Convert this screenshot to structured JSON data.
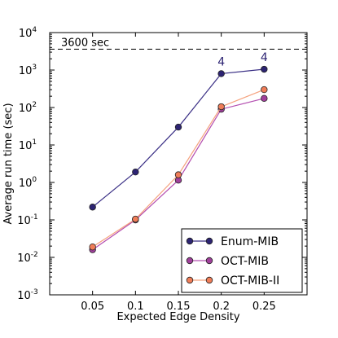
{
  "chart_data": {
    "type": "line",
    "xlabel": "Expected Edge Density",
    "ylabel": "Average run time (sec)",
    "x": [
      0.05,
      0.1,
      0.15,
      0.2,
      0.25
    ],
    "x_ticks": [
      "0.05",
      "0.1",
      "0.15",
      "0.2",
      "0.25"
    ],
    "xlim": [
      0,
      0.3
    ],
    "y_scale": "log",
    "ylim": [
      0.001,
      10000
    ],
    "y_ticks": [
      {
        "base": "10",
        "exp": "-3",
        "value": 0.001
      },
      {
        "base": "10",
        "exp": "-2",
        "value": 0.01
      },
      {
        "base": "10",
        "exp": "-1",
        "value": 0.1
      },
      {
        "base": "10",
        "exp": "0",
        "value": 1
      },
      {
        "base": "10",
        "exp": "1",
        "value": 10
      },
      {
        "base": "10",
        "exp": "2",
        "value": 100
      },
      {
        "base": "10",
        "exp": "3",
        "value": 1000
      },
      {
        "base": "10",
        "exp": "4",
        "value": 10000
      }
    ],
    "grid": false,
    "legend_position": "bottom-right",
    "reference_line": {
      "value": 3600,
      "label": "3600 sec",
      "style": "dashed"
    },
    "series": [
      {
        "name": "Enum-MIB",
        "color": "#2d2473",
        "marker_fill": "#2d2473",
        "line_color": "#3a2f85",
        "values": [
          0.22,
          1.9,
          30,
          800,
          1050
        ]
      },
      {
        "name": "OCT-MIB",
        "color": "#a0409b",
        "marker_fill": "#a0409b",
        "line_color": "#b44fb0",
        "values": [
          0.016,
          0.1,
          1.15,
          90,
          175
        ]
      },
      {
        "name": "OCT-MIB-II",
        "color": "#f07d58",
        "marker_fill": "#f07d58",
        "line_color": "#f5a27e",
        "values": [
          0.019,
          0.105,
          1.6,
          105,
          300
        ]
      }
    ],
    "annotations": [
      {
        "x": 0.2,
        "y": 800,
        "text": "4",
        "color": "#2d2473"
      },
      {
        "x": 0.25,
        "y": 1050,
        "text": "4",
        "color": "#2d2473"
      }
    ]
  }
}
